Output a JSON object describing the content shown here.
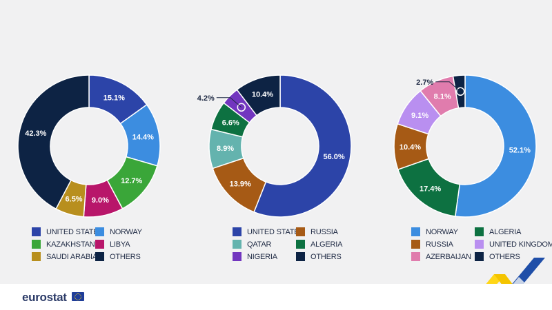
{
  "brand": {
    "name": "eurostat"
  },
  "colors": {
    "navy": "#0d2344",
    "blue": "#3c8de0",
    "green": "#3aa639",
    "magenta": "#b8166a",
    "gold": "#b88f1e",
    "royal": "#2c44a8",
    "brown": "#a65a15",
    "teal": "#64b3ae",
    "darkgreen": "#0d7141",
    "purple": "#7236bf",
    "lavender": "#b98ff0",
    "pink": "#e07cad"
  },
  "chart_data": [
    {
      "type": "pie",
      "series": [
        {
          "name": "UNITED STATES",
          "value": 15.1,
          "label": "15.1%",
          "color": "#2c44a8"
        },
        {
          "name": "NORWAY",
          "value": 14.4,
          "label": "14.4%",
          "color": "#3c8de0"
        },
        {
          "name": "KAZAKHSTAN",
          "value": 12.7,
          "label": "12.7%",
          "color": "#3aa639"
        },
        {
          "name": "LIBYA",
          "value": 9.0,
          "label": "9.0%",
          "color": "#b8166a"
        },
        {
          "name": "SAUDI ARABIA",
          "value": 6.5,
          "label": "6.5%",
          "color": "#b88f1e"
        },
        {
          "name": "OTHERS",
          "value": 42.3,
          "label": "42.3%",
          "color": "#0d2344"
        }
      ],
      "legend": [
        "UNITED STATES",
        "NORWAY",
        "KAZAKHSTAN",
        "LIBYA",
        "SAUDI ARABIA",
        "OTHERS"
      ]
    },
    {
      "type": "pie",
      "series": [
        {
          "name": "UNITED STATES",
          "value": 56.0,
          "label": "56.0%",
          "color": "#2c44a8"
        },
        {
          "name": "RUSSIA",
          "value": 13.9,
          "label": "13.9%",
          "color": "#a65a15"
        },
        {
          "name": "QATAR",
          "value": 8.9,
          "label": "8.9%",
          "color": "#64b3ae"
        },
        {
          "name": "ALGERIA",
          "value": 6.6,
          "label": "6.6%",
          "color": "#0d7141"
        },
        {
          "name": "NIGERIA",
          "value": 4.2,
          "label": "4.2%",
          "color": "#7236bf",
          "callout": true
        },
        {
          "name": "OTHERS",
          "value": 10.4,
          "label": "10.4%",
          "color": "#0d2344"
        }
      ],
      "legend": [
        "UNITED STATES",
        "RUSSIA",
        "QATAR",
        "ALGERIA",
        "NIGERIA",
        "OTHERS"
      ]
    },
    {
      "type": "pie",
      "series": [
        {
          "name": "NORWAY",
          "value": 52.1,
          "label": "52.1%",
          "color": "#3c8de0"
        },
        {
          "name": "ALGERIA",
          "value": 17.4,
          "label": "17.4%",
          "color": "#0d7141"
        },
        {
          "name": "RUSSIA",
          "value": 10.4,
          "label": "10.4%",
          "color": "#a65a15"
        },
        {
          "name": "UNITED KINGDOM",
          "value": 9.1,
          "label": "9.1%",
          "color": "#b98ff0"
        },
        {
          "name": "AZERBAIJAN",
          "value": 8.1,
          "label": "8.1%",
          "color": "#e07cad"
        },
        {
          "name": "OTHERS",
          "value": 2.7,
          "label": "2.7%",
          "color": "#0d2344",
          "callout": true
        }
      ],
      "legend": [
        "NORWAY",
        "ALGERIA",
        "RUSSIA",
        "UNITED KINGDOM",
        "AZERBAIJAN",
        "OTHERS"
      ]
    }
  ]
}
